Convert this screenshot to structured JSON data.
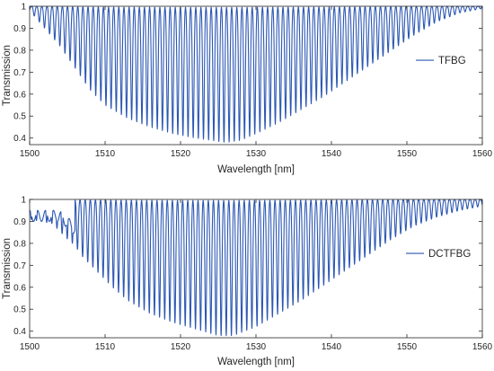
{
  "chart_data": [
    {
      "type": "line",
      "title": "",
      "xlabel": "Wavelength [nm]",
      "ylabel": "Transmission",
      "xlim": [
        1500,
        1560
      ],
      "ylim": [
        0.37,
        1.0
      ],
      "xticks": [
        1500,
        1510,
        1520,
        1530,
        1540,
        1550,
        1560
      ],
      "yticks": [
        0.4,
        0.5,
        0.6,
        0.7,
        0.8,
        0.9,
        1
      ],
      "xtick_labels": [
        "1500",
        "1510",
        "1520",
        "1530",
        "1540",
        "1550",
        "1560"
      ],
      "ytick_labels": [
        "0.4",
        "0.5",
        "0.6",
        "0.7",
        "0.8",
        "0.9",
        "1"
      ],
      "grid": false,
      "legend": {
        "placement": "right",
        "entries": [
          "TFBG"
        ]
      },
      "series": [
        {
          "name": "TFBG",
          "color": "#2c57b3",
          "description": "dense comb of cladding-mode resonance dips",
          "resonance_spacing_nm": 0.68,
          "first_resonance_nm": 1500.6,
          "envelope_min_points": [
            [
              1500,
              0.98
            ],
            [
              1502,
              0.9
            ],
            [
              1504,
              0.82
            ],
            [
              1506,
              0.72
            ],
            [
              1508,
              0.62
            ],
            [
              1510,
              0.55
            ],
            [
              1513,
              0.49
            ],
            [
              1516,
              0.45
            ],
            [
              1519,
              0.42
            ],
            [
              1522,
              0.4
            ],
            [
              1524,
              0.39
            ],
            [
              1526,
              0.38
            ],
            [
              1528,
              0.39
            ],
            [
              1530,
              0.42
            ],
            [
              1533,
              0.47
            ],
            [
              1536,
              0.53
            ],
            [
              1539,
              0.59
            ],
            [
              1542,
              0.66
            ],
            [
              1545,
              0.73
            ],
            [
              1548,
              0.8
            ],
            [
              1551,
              0.87
            ],
            [
              1554,
              0.93
            ],
            [
              1557,
              0.97
            ],
            [
              1560,
              0.99
            ]
          ]
        }
      ]
    },
    {
      "type": "line",
      "title": "",
      "xlabel": "Wavelength [nm]",
      "ylabel": "Transmission",
      "xlim": [
        1500,
        1560
      ],
      "ylim": [
        0.37,
        1.0
      ],
      "xticks": [
        1500,
        1510,
        1520,
        1530,
        1540,
        1550,
        1560
      ],
      "yticks": [
        0.4,
        0.5,
        0.6,
        0.7,
        0.8,
        0.9,
        1
      ],
      "xtick_labels": [
        "1500",
        "1510",
        "1520",
        "1530",
        "1540",
        "1550",
        "1560"
      ],
      "ytick_labels": [
        "0.4",
        "0.5",
        "0.6",
        "0.7",
        "0.8",
        "0.9",
        "1"
      ],
      "grid": false,
      "legend": {
        "placement": "right",
        "entries": [
          "DCTFBG"
        ]
      },
      "series": [
        {
          "name": "DCTFBG",
          "color": "#2c57b3",
          "description": "dense comb of cladding-mode resonance dips with baseline ripple at start",
          "resonance_spacing_nm": 0.68,
          "first_resonance_nm": 1500.9,
          "envelope_min_points": [
            [
              1500,
              0.91
            ],
            [
              1503,
              0.89
            ],
            [
              1505,
              0.82
            ],
            [
              1506,
              0.79
            ],
            [
              1507,
              0.74
            ],
            [
              1509,
              0.67
            ],
            [
              1511,
              0.6
            ],
            [
              1513,
              0.54
            ],
            [
              1516,
              0.48
            ],
            [
              1519,
              0.44
            ],
            [
              1522,
              0.41
            ],
            [
              1525,
              0.38
            ],
            [
              1527,
              0.38
            ],
            [
              1530,
              0.42
            ],
            [
              1533,
              0.48
            ],
            [
              1536,
              0.54
            ],
            [
              1539,
              0.61
            ],
            [
              1542,
              0.68
            ],
            [
              1545,
              0.75
            ],
            [
              1548,
              0.82
            ],
            [
              1551,
              0.88
            ],
            [
              1554,
              0.92
            ],
            [
              1557,
              0.95
            ],
            [
              1560,
              0.97
            ]
          ]
        }
      ]
    }
  ]
}
